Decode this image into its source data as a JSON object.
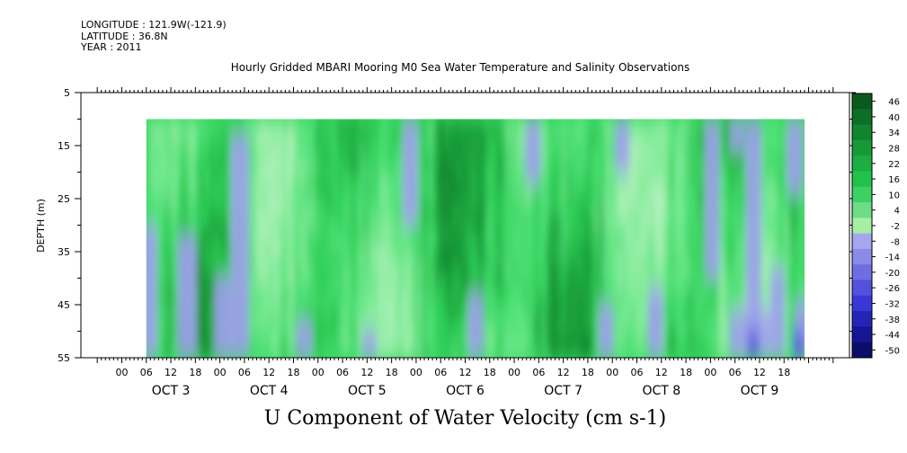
{
  "meta": {
    "longitude": "LONGITUDE : 121.9W(-121.9)",
    "latitude": "LATITUDE : 36.8N",
    "year": "YEAR : 2011"
  },
  "chart_data": {
    "type": "heatmap",
    "title": "Hourly Gridded MBARI Mooring M0 Sea Water Temperature and Salinity Observations",
    "xlabel": "U Component of Water Velocity (cm s-1)",
    "ylabel": "DEPTH (m)",
    "y_ticks": [
      5,
      15,
      25,
      35,
      45,
      55
    ],
    "ylim": [
      5,
      55
    ],
    "y_inverted": true,
    "data_depth_range": [
      10,
      55
    ],
    "x_hour_ticks": [
      "00",
      "06",
      "12",
      "18",
      "00",
      "06",
      "12",
      "18",
      "00",
      "06",
      "12",
      "18",
      "00",
      "06",
      "12",
      "18",
      "00",
      "06",
      "12",
      "18",
      "00",
      "06",
      "12",
      "18",
      "00",
      "06",
      "12",
      "18"
    ],
    "x_day_labels": [
      "OCT  3",
      "OCT  4",
      "OCT  5",
      "OCT  6",
      "OCT  7",
      "OCT  8",
      "OCT  9"
    ],
    "data_start": "OCT 3 06:00",
    "data_end": "OCT 9 23:00",
    "colorbar_levels": [
      -50,
      -44,
      -38,
      -32,
      -26,
      -20,
      -14,
      -8,
      -2,
      4,
      10,
      16,
      22,
      28,
      34,
      40,
      46
    ],
    "colorbar_labels": [
      "46",
      "40",
      "34",
      "28",
      "22",
      "16",
      "10",
      "4",
      "-2",
      "-8",
      "-14",
      "-20",
      "-26",
      "-32",
      "-38",
      "-44",
      "-50"
    ],
    "colors": {
      "strong_positive": "#0a5a1e",
      "positive": "#22c24a",
      "weak_positive": "#a6eea6",
      "weak_negative": "#a6a6ee",
      "negative": "#3838d8",
      "strong_negative": "#0c0c6a"
    }
  }
}
